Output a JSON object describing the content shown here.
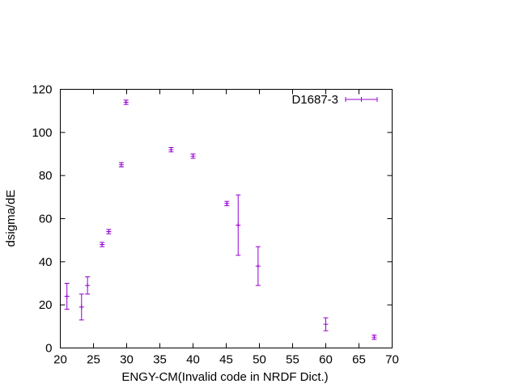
{
  "chart_data": {
    "type": "scatter",
    "xlabel": "ENGY-CM(Invalid code in NRDF Dict.)",
    "ylabel": "dsigma/dE",
    "xlim": [
      20,
      70
    ],
    "ylim": [
      0,
      120
    ],
    "x_ticks": [
      20,
      25,
      30,
      35,
      40,
      45,
      50,
      55,
      60,
      65,
      70
    ],
    "y_ticks": [
      0,
      20,
      40,
      60,
      80,
      100,
      120
    ],
    "grid": false,
    "legend_position": "top-right",
    "series": [
      {
        "name": "D1687-3",
        "color": "#9400d3",
        "marker": "plus-with-errorbars",
        "points": [
          {
            "x": 21.0,
            "y": 24.0,
            "err": 6.0
          },
          {
            "x": 23.2,
            "y": 19.0,
            "err": 6.0
          },
          {
            "x": 24.1,
            "y": 29.0,
            "err": 4.0
          },
          {
            "x": 26.3,
            "y": 48.0,
            "err": 1.0
          },
          {
            "x": 27.3,
            "y": 54.0,
            "err": 1.0
          },
          {
            "x": 29.2,
            "y": 85.0,
            "err": 1.0
          },
          {
            "x": 29.9,
            "y": 114.0,
            "err": 1.0
          },
          {
            "x": 36.7,
            "y": 92.0,
            "err": 1.0
          },
          {
            "x": 40.0,
            "y": 89.0,
            "err": 1.0
          },
          {
            "x": 45.1,
            "y": 67.0,
            "err": 1.0
          },
          {
            "x": 46.8,
            "y": 57.0,
            "err": 14.0
          },
          {
            "x": 49.8,
            "y": 38.0,
            "err": 9.0
          },
          {
            "x": 60.0,
            "y": 11.0,
            "err": 3.0
          },
          {
            "x": 67.3,
            "y": 5.0,
            "err": 1.0
          }
        ]
      }
    ]
  }
}
